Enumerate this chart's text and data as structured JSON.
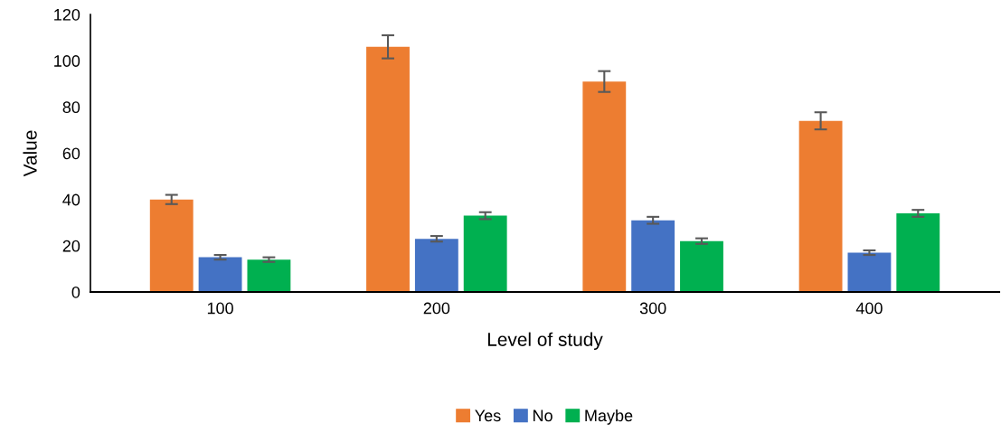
{
  "chart_data": {
    "type": "bar",
    "xlabel": "Level of study",
    "ylabel": "Value",
    "categories": [
      "100",
      "200",
      "300",
      "400"
    ],
    "series": [
      {
        "name": "Yes",
        "color": "#ed7d31",
        "values": [
          40,
          106,
          91,
          74
        ],
        "errors": [
          2,
          5,
          4.5,
          3.7
        ]
      },
      {
        "name": "No",
        "color": "#4472c4",
        "values": [
          15,
          23,
          31,
          17
        ],
        "errors": [
          1,
          1.2,
          1.5,
          1
        ]
      },
      {
        "name": "Maybe",
        "color": "#00b050",
        "values": [
          14,
          33,
          22,
          34
        ],
        "errors": [
          1,
          1.5,
          1.2,
          1.5
        ]
      }
    ],
    "ylim": [
      0,
      120
    ],
    "yticks": [
      0,
      20,
      40,
      60,
      80,
      100,
      120
    ],
    "grid": false,
    "legend": "bottom"
  }
}
